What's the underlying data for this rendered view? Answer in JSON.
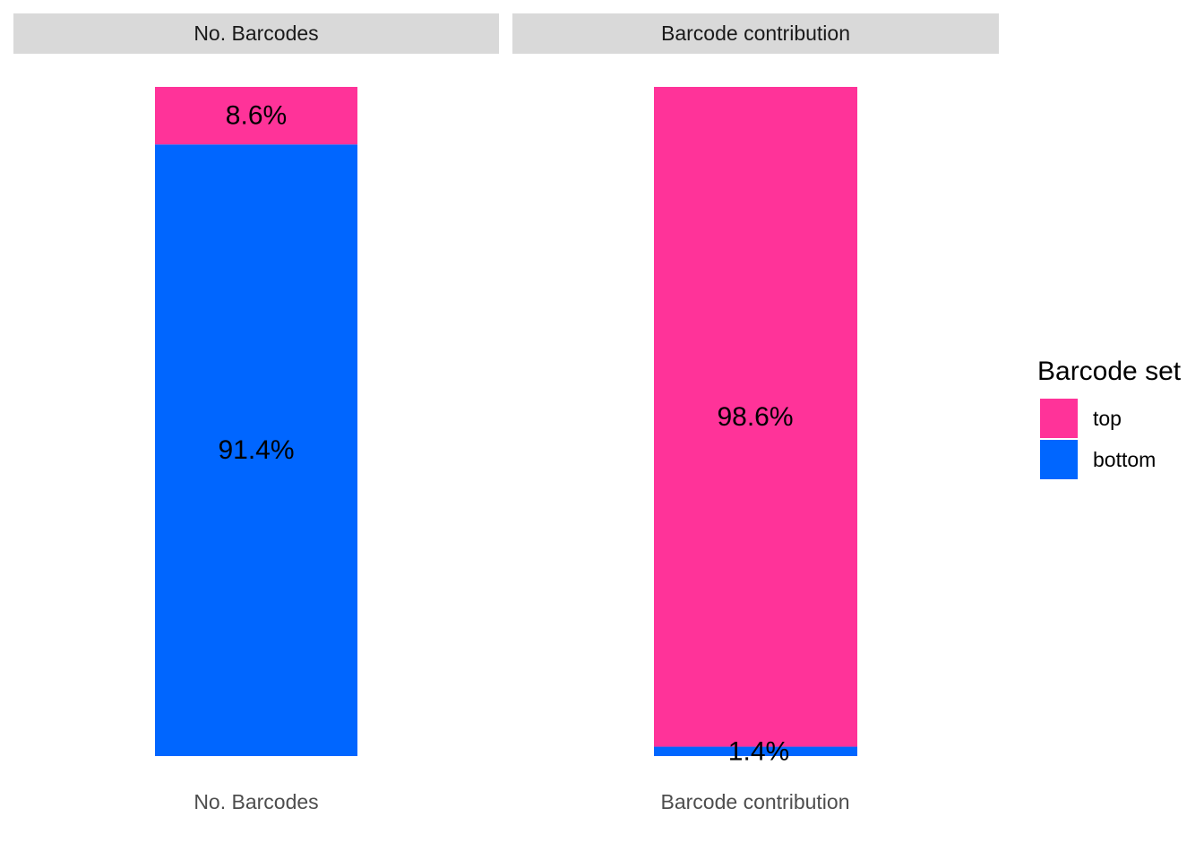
{
  "chart_data": {
    "type": "bar",
    "stacked": true,
    "facets": [
      "No. Barcodes",
      "Barcode contribution"
    ],
    "categories": [
      "No. Barcodes",
      "Barcode contribution"
    ],
    "series": [
      {
        "name": "top",
        "color": "#FF3399",
        "values": [
          8.6,
          98.6
        ],
        "labels": [
          "8.6%",
          "98.6%"
        ]
      },
      {
        "name": "bottom",
        "color": "#0066FF",
        "values": [
          91.4,
          1.4
        ],
        "labels": [
          "91.4%",
          "1.4%"
        ]
      }
    ],
    "ylim": [
      0,
      100
    ],
    "grid": false,
    "legend": {
      "title": "Barcode set",
      "position": "right"
    }
  }
}
